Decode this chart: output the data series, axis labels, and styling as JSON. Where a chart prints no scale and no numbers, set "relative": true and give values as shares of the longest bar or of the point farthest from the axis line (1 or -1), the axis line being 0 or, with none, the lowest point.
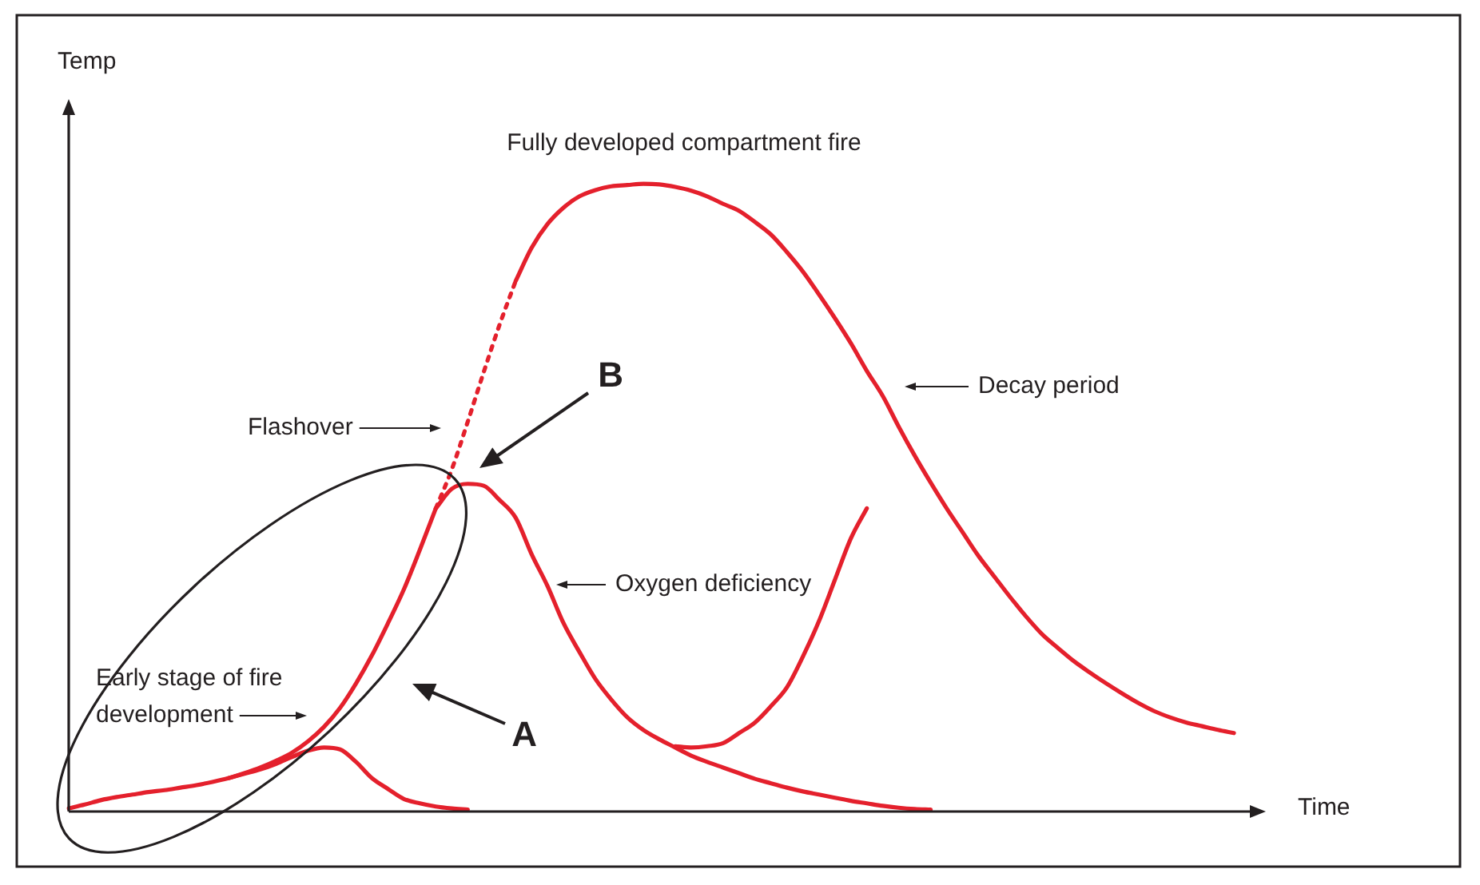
{
  "chart_data": {
    "type": "line",
    "relative": true,
    "xlabel": "Time",
    "ylabel": "Temp",
    "grid": false,
    "legend": false,
    "tick_labels": false,
    "annotations": [
      "Fully developed compartment fire",
      "Flashover",
      "Decay period",
      "Oxygen deficiency",
      "Early stage of fire development",
      "A",
      "B"
    ],
    "categories": [
      null,
      null,
      null,
      null,
      null,
      null,
      null,
      null,
      null,
      null,
      null,
      null,
      null,
      null,
      null,
      null,
      null,
      null,
      null,
      null,
      null,
      null,
      null,
      null,
      null,
      null,
      null,
      null,
      null,
      null,
      null,
      null,
      null,
      null,
      null,
      null,
      null,
      null,
      null,
      null,
      null,
      null,
      null,
      null,
      null,
      null,
      null,
      null,
      null,
      null,
      null,
      null,
      null,
      null,
      null,
      null,
      null,
      null,
      null,
      null,
      null,
      null,
      null,
      null,
      null,
      null,
      null,
      null,
      null,
      null,
      null,
      null,
      null,
      null,
      null,
      null
    ],
    "series": [
      {
        "color": "#e4202c",
        "values": [
          0.005,
          0.011,
          0.018,
          0.023,
          0.027,
          0.031,
          0.034,
          0.038,
          0.042,
          0.047,
          0.053,
          0.061,
          0.07,
          0.081,
          0.094,
          0.112,
          0.135,
          0.165,
          0.204,
          0.249,
          0.3,
          0.354,
          0.417,
          0.483,
          null,
          null,
          null,
          null,
          null,
          null,
          null,
          null,
          null,
          null,
          null,
          null,
          null,
          null,
          null,
          null,
          null,
          null,
          null,
          null,
          null,
          null,
          null,
          null,
          null,
          null,
          null,
          null,
          null,
          null,
          null,
          null,
          null,
          null,
          null,
          null,
          null,
          null,
          null,
          null,
          null,
          null,
          null,
          null,
          null,
          null,
          null,
          null,
          null,
          null,
          null,
          null
        ]
      },
      {
        "color": "#e4202c",
        "line_style": "dotted",
        "values": [
          null,
          null,
          null,
          null,
          null,
          null,
          null,
          null,
          null,
          null,
          null,
          null,
          null,
          null,
          null,
          null,
          null,
          null,
          null,
          null,
          null,
          null,
          null,
          0.483,
          0.545,
          0.621,
          0.7,
          0.776,
          0.845,
          null,
          null,
          null,
          null,
          null,
          null,
          null,
          null,
          null,
          null,
          null,
          null,
          null,
          null,
          null,
          null,
          null,
          null,
          null,
          null,
          null,
          null,
          null,
          null,
          null,
          null,
          null,
          null,
          null,
          null,
          null,
          null,
          null,
          null,
          null,
          null,
          null,
          null,
          null,
          null,
          null,
          null,
          null,
          null,
          null,
          null,
          null
        ]
      },
      {
        "color": "#e4202c",
        "values": [
          null,
          null,
          null,
          null,
          null,
          null,
          null,
          null,
          null,
          null,
          null,
          null,
          null,
          null,
          null,
          null,
          null,
          null,
          null,
          null,
          null,
          null,
          null,
          null,
          null,
          null,
          null,
          null,
          0.845,
          0.898,
          0.936,
          0.962,
          0.98,
          0.99,
          0.996,
          0.998,
          1,
          0.999,
          0.995,
          0.989,
          0.98,
          0.968,
          0.957,
          0.939,
          0.919,
          0.891,
          0.86,
          0.824,
          0.786,
          0.746,
          0.702,
          0.662,
          0.613,
          0.567,
          0.524,
          0.483,
          0.445,
          0.407,
          0.374,
          0.341,
          0.31,
          0.282,
          0.26,
          0.239,
          0.221,
          0.204,
          0.188,
          0.173,
          0.16,
          0.15,
          0.142,
          0.136,
          0.13,
          0.125,
          null,
          null
        ]
      },
      {
        "color": "#e4202c",
        "values": [
          null,
          null,
          null,
          null,
          null,
          null,
          null,
          null,
          null,
          null,
          null,
          null,
          null,
          null,
          null,
          null,
          null,
          null,
          null,
          null,
          null,
          null,
          null,
          0.483,
          0.514,
          0.522,
          0.519,
          0.496,
          0.468,
          0.41,
          0.359,
          0.3,
          0.254,
          0.211,
          0.178,
          0.15,
          0.13,
          0.115,
          0.102,
          0.089,
          0.079,
          0.07,
          0.061,
          0.052,
          0.045,
          0.038,
          0.032,
          0.027,
          0.022,
          0.017,
          0.013,
          0.009,
          0.006,
          0.004,
          0.003,
          null,
          null,
          null,
          null,
          null,
          null,
          null,
          null,
          null,
          null,
          null,
          null,
          null,
          null,
          null,
          null,
          null,
          null,
          null,
          null,
          null
        ]
      },
      {
        "color": "#e4202c",
        "values": [
          null,
          null,
          null,
          null,
          null,
          null,
          null,
          null,
          null,
          null,
          null,
          null,
          null,
          null,
          null,
          null,
          null,
          null,
          null,
          null,
          null,
          null,
          null,
          null,
          null,
          null,
          null,
          null,
          null,
          null,
          null,
          null,
          null,
          null,
          null,
          null,
          null,
          null,
          0.104,
          0.102,
          0.104,
          0.109,
          0.125,
          0.142,
          0.168,
          0.198,
          0.247,
          0.303,
          0.369,
          0.435,
          0.483,
          null,
          null,
          null,
          null,
          null,
          null,
          null,
          null,
          null,
          null,
          null,
          null,
          null,
          null,
          null,
          null,
          null,
          null,
          null,
          null,
          null,
          null,
          null,
          null,
          null
        ]
      },
      {
        "color": "#e4202c",
        "values": [
          null,
          null,
          null,
          null,
          null,
          null,
          null,
          null,
          null,
          null,
          0.053,
          0.06,
          0.067,
          0.076,
          0.087,
          0.097,
          0.102,
          0.099,
          0.079,
          0.053,
          0.036,
          0.02,
          0.013,
          0.008,
          0.005,
          0.003,
          null,
          null,
          null,
          null,
          null,
          null,
          null,
          null,
          null,
          null,
          null,
          null,
          null,
          null,
          null,
          null,
          null,
          null,
          null,
          null,
          null,
          null,
          null,
          null,
          null,
          null,
          null,
          null,
          null,
          null,
          null,
          null,
          null,
          null,
          null,
          null,
          null,
          null,
          null,
          null,
          null,
          null,
          null,
          null,
          null,
          null,
          null,
          null,
          null,
          null
        ]
      }
    ]
  }
}
